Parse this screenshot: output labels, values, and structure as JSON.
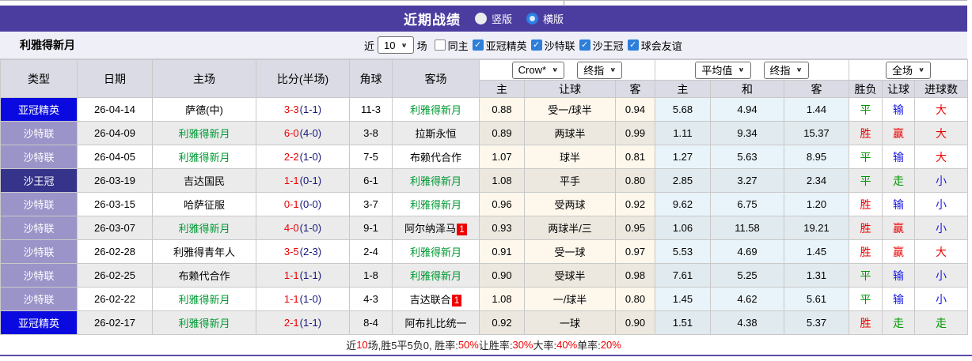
{
  "title_bar": {
    "title": "近期战绩",
    "vertical_label": "竖版",
    "horizontal_label": "横版",
    "selected": "横版"
  },
  "filter_bar": {
    "team_name": "利雅得新月",
    "near_label": "近",
    "match_count": "10",
    "matches_label": "场",
    "checkboxes": [
      {
        "label": "同主",
        "checked": false
      },
      {
        "label": "亚冠精英",
        "checked": true
      },
      {
        "label": "沙特联",
        "checked": true
      },
      {
        "label": "沙王冠",
        "checked": true
      },
      {
        "label": "球会友谊",
        "checked": true
      }
    ]
  },
  "table": {
    "left_headers": [
      "类型",
      "日期",
      "主场",
      "比分(半场)",
      "角球",
      "客场"
    ],
    "dropdowns": {
      "crown_source": "Crow*",
      "crown_kind": "终指",
      "avg_source": "平均值",
      "avg_kind": "终指",
      "scope": "全场"
    },
    "sub_headers": [
      "主",
      "让球",
      "客",
      "主",
      "和",
      "客",
      "胜负",
      "让球",
      "进球数"
    ],
    "rows": [
      {
        "type": "亚冠精英",
        "type_key": "acl",
        "date": "26-04-14",
        "home": "萨德(中)",
        "home_is_focus": false,
        "home_badge": "",
        "score_ft": "3-3",
        "score_ht": "(1-1)",
        "corners": "11-3",
        "away": "利雅得新月",
        "away_is_focus": true,
        "away_badge": "",
        "crown_home": "0.88",
        "handicap": "受一/球半",
        "crown_away": "0.94",
        "avg_home": "5.68",
        "avg_draw": "4.94",
        "avg_away": "1.44",
        "res_wdl": "平",
        "res_wdl_color": "green",
        "res_handicap": "输",
        "res_handicap_color": "blue",
        "res_goals": "大",
        "res_goals_color": "red"
      },
      {
        "type": "沙特联",
        "type_key": "saudi",
        "date": "26-04-09",
        "home": "利雅得新月",
        "home_is_focus": true,
        "home_badge": "",
        "score_ft": "6-0",
        "score_ht": "(4-0)",
        "corners": "3-8",
        "away": "拉斯永恒",
        "away_is_focus": false,
        "away_badge": "",
        "crown_home": "0.89",
        "handicap": "两球半",
        "crown_away": "0.99",
        "avg_home": "1.11",
        "avg_draw": "9.34",
        "avg_away": "15.37",
        "res_wdl": "胜",
        "res_wdl_color": "red",
        "res_handicap": "赢",
        "res_handicap_color": "red",
        "res_goals": "大",
        "res_goals_color": "red"
      },
      {
        "type": "沙特联",
        "type_key": "saudi",
        "date": "26-04-05",
        "home": "利雅得新月",
        "home_is_focus": true,
        "home_badge": "",
        "score_ft": "2-2",
        "score_ht": "(1-0)",
        "corners": "7-5",
        "away": "布赖代合作",
        "away_is_focus": false,
        "away_badge": "",
        "crown_home": "1.07",
        "handicap": "球半",
        "crown_away": "0.81",
        "avg_home": "1.27",
        "avg_draw": "5.63",
        "avg_away": "8.95",
        "res_wdl": "平",
        "res_wdl_color": "green",
        "res_handicap": "输",
        "res_handicap_color": "blue",
        "res_goals": "大",
        "res_goals_color": "red"
      },
      {
        "type": "沙王冠",
        "type_key": "kings",
        "date": "26-03-19",
        "home": "吉达国民",
        "home_is_focus": false,
        "home_badge": "",
        "score_ft": "1-1",
        "score_ht": "(0-1)",
        "corners": "6-1",
        "away": "利雅得新月",
        "away_is_focus": true,
        "away_badge": "",
        "crown_home": "1.08",
        "handicap": "平手",
        "crown_away": "0.80",
        "avg_home": "2.85",
        "avg_draw": "3.27",
        "avg_away": "2.34",
        "res_wdl": "平",
        "res_wdl_color": "green",
        "res_handicap": "走",
        "res_handicap_color": "green",
        "res_goals": "小",
        "res_goals_color": "blue"
      },
      {
        "type": "沙特联",
        "type_key": "saudi",
        "date": "26-03-15",
        "home": "哈萨征服",
        "home_is_focus": false,
        "home_badge": "",
        "score_ft": "0-1",
        "score_ht": "(0-0)",
        "corners": "3-7",
        "away": "利雅得新月",
        "away_is_focus": true,
        "away_badge": "",
        "crown_home": "0.96",
        "handicap": "受两球",
        "crown_away": "0.92",
        "avg_home": "9.62",
        "avg_draw": "6.75",
        "avg_away": "1.20",
        "res_wdl": "胜",
        "res_wdl_color": "red",
        "res_handicap": "输",
        "res_handicap_color": "blue",
        "res_goals": "小",
        "res_goals_color": "blue"
      },
      {
        "type": "沙特联",
        "type_key": "saudi",
        "date": "26-03-07",
        "home": "利雅得新月",
        "home_is_focus": true,
        "home_badge": "",
        "score_ft": "4-0",
        "score_ht": "(1-0)",
        "corners": "9-1",
        "away": "阿尔纳泽马",
        "away_is_focus": false,
        "away_badge": "1",
        "crown_home": "0.93",
        "handicap": "两球半/三",
        "crown_away": "0.95",
        "avg_home": "1.06",
        "avg_draw": "11.58",
        "avg_away": "19.21",
        "res_wdl": "胜",
        "res_wdl_color": "red",
        "res_handicap": "赢",
        "res_handicap_color": "red",
        "res_goals": "小",
        "res_goals_color": "blue"
      },
      {
        "type": "沙特联",
        "type_key": "saudi",
        "date": "26-02-28",
        "home": "利雅得青年人",
        "home_is_focus": false,
        "home_badge": "",
        "score_ft": "3-5",
        "score_ht": "(2-3)",
        "corners": "2-4",
        "away": "利雅得新月",
        "away_is_focus": true,
        "away_badge": "",
        "crown_home": "0.91",
        "handicap": "受一球",
        "crown_away": "0.97",
        "avg_home": "5.53",
        "avg_draw": "4.69",
        "avg_away": "1.45",
        "res_wdl": "胜",
        "res_wdl_color": "red",
        "res_handicap": "赢",
        "res_handicap_color": "red",
        "res_goals": "大",
        "res_goals_color": "red"
      },
      {
        "type": "沙特联",
        "type_key": "saudi",
        "date": "26-02-25",
        "home": "布赖代合作",
        "home_is_focus": false,
        "home_badge": "",
        "score_ft": "1-1",
        "score_ht": "(1-1)",
        "corners": "1-8",
        "away": "利雅得新月",
        "away_is_focus": true,
        "away_badge": "",
        "crown_home": "0.90",
        "handicap": "受球半",
        "crown_away": "0.98",
        "avg_home": "7.61",
        "avg_draw": "5.25",
        "avg_away": "1.31",
        "res_wdl": "平",
        "res_wdl_color": "green",
        "res_handicap": "输",
        "res_handicap_color": "blue",
        "res_goals": "小",
        "res_goals_color": "blue"
      },
      {
        "type": "沙特联",
        "type_key": "saudi",
        "date": "26-02-22",
        "home": "利雅得新月",
        "home_is_focus": true,
        "home_badge": "",
        "score_ft": "1-1",
        "score_ht": "(1-0)",
        "corners": "4-3",
        "away": "吉达联合",
        "away_is_focus": false,
        "away_badge": "1",
        "crown_home": "1.08",
        "handicap": "一/球半",
        "crown_away": "0.80",
        "avg_home": "1.45",
        "avg_draw": "4.62",
        "avg_away": "5.61",
        "res_wdl": "平",
        "res_wdl_color": "green",
        "res_handicap": "输",
        "res_handicap_color": "blue",
        "res_goals": "小",
        "res_goals_color": "blue"
      },
      {
        "type": "亚冠精英",
        "type_key": "acl",
        "date": "26-02-17",
        "home": "利雅得新月",
        "home_is_focus": true,
        "home_badge": "",
        "score_ft": "2-1",
        "score_ht": "(1-1)",
        "corners": "8-4",
        "away": "阿布扎比统一",
        "away_is_focus": false,
        "away_badge": "",
        "crown_home": "0.92",
        "handicap": "一球",
        "crown_away": "0.90",
        "avg_home": "1.51",
        "avg_draw": "4.38",
        "avg_away": "5.37",
        "res_wdl": "胜",
        "res_wdl_color": "red",
        "res_handicap": "走",
        "res_handicap_color": "green",
        "res_goals": "走",
        "res_goals_color": "green"
      }
    ]
  },
  "summary": {
    "segments": [
      {
        "text": "近",
        "red": false
      },
      {
        "text": "10",
        "red": true
      },
      {
        "text": "场,胜5平5负0, 胜率:",
        "red": false
      },
      {
        "text": "50%",
        "red": true
      },
      {
        "text": " 让胜率:",
        "red": false
      },
      {
        "text": "30%",
        "red": true
      },
      {
        "text": " 大率:",
        "red": false
      },
      {
        "text": "40%",
        "red": true
      },
      {
        "text": " 单率:",
        "red": false
      },
      {
        "text": "20%",
        "red": true
      }
    ]
  },
  "colors": {
    "accent_purple": "#4b3da0",
    "type_acl_blue": "#0a0ae0",
    "type_saudi_purple": "#9b94c8",
    "type_kings_navy": "#35338a",
    "focus_team_green": "#009933",
    "score_red": "#ee0000",
    "halftime_navy": "#15157a",
    "result_green": "#009900",
    "result_blue": "#1a1ae6",
    "checkbox_blue": "#2d7fd9"
  }
}
